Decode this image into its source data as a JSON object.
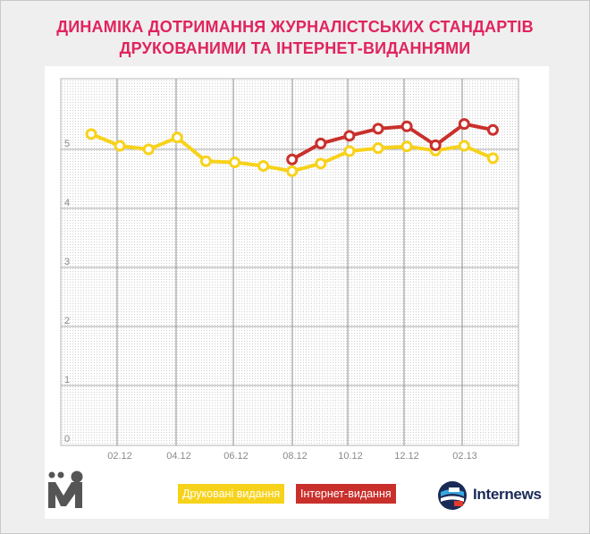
{
  "chart_data": {
    "type": "line",
    "title": [
      "ДИНАМІКА ДОТРИМАННЯ ЖУРНАЛІСТСЬКИХ СТАНДАРТІВ",
      "ДРУКОВАНИМИ ТА ІНТЕРНЕТ-ВИДАННЯМИ"
    ],
    "x_tick_labels": [
      "02.12",
      "04.12",
      "06.12",
      "08.12",
      "10.12",
      "12.12",
      "02.13"
    ],
    "y_tick_labels": [
      "0",
      "1",
      "2",
      "3",
      "4",
      "5"
    ],
    "ylim": [
      0,
      5.8
    ],
    "grid": true,
    "legend_placement": "bottom-center",
    "series": [
      {
        "name": "Друковані видання",
        "color": "#f7d21a",
        "x_index": [
          1,
          2,
          3,
          4,
          5,
          6,
          7,
          8,
          9,
          10,
          11,
          12,
          13,
          14,
          15
        ],
        "values": [
          5.26,
          5.06,
          5.0,
          5.2,
          4.8,
          4.78,
          4.72,
          4.63,
          4.76,
          4.97,
          5.02,
          5.05,
          4.98,
          5.06,
          4.85
        ]
      },
      {
        "name": "Інтернет-видання",
        "color": "#c9302c",
        "x_index": [
          8,
          9,
          10,
          11,
          12,
          13,
          14,
          15
        ],
        "values": [
          4.83,
          5.1,
          5.23,
          5.35,
          5.39,
          5.07,
          5.43,
          5.33
        ]
      }
    ]
  },
  "legend": {
    "print_label": "Друковані видання",
    "web_label": "Інтернет-видання"
  },
  "logos": {
    "left_icon": "im-logo-icon",
    "right_icon": "internews-logo-icon",
    "right_text": "Internews"
  }
}
